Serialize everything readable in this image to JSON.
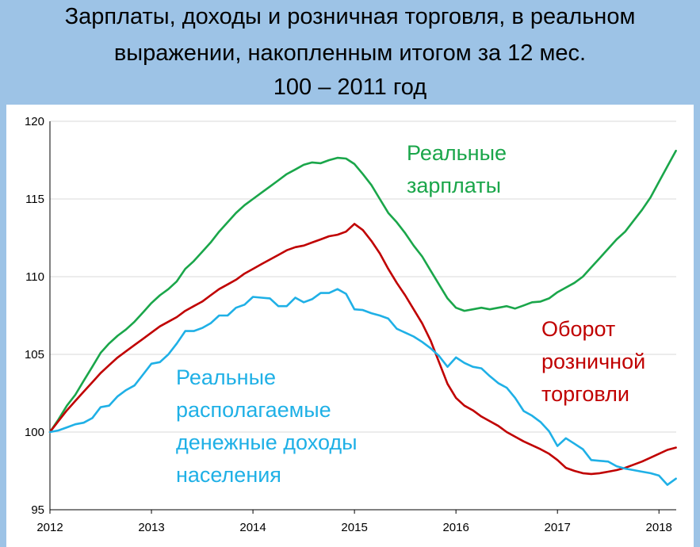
{
  "header": {
    "title_line1": "Зарплаты, доходы и розничная торговля, в реальном",
    "title_line2": "выражении, накопленным итогом за 12 мес.",
    "title_line3": "100 – 2011 год"
  },
  "colors": {
    "header_bg": "#9dc3e6",
    "wages": "#1aa64a",
    "retail": "#c00000",
    "income": "#1fb0e6",
    "grid": "#d9d9d9"
  },
  "annotations": {
    "wages_line1": "Реальные",
    "wages_line2": "зарплаты",
    "retail_line1": "Оборот",
    "retail_line2": "розничной",
    "retail_line3": "торговли",
    "income_line1": "Реальные",
    "income_line2": "располагаемые",
    "income_line3": "денежные доходы",
    "income_line4": "населения"
  },
  "chart_data": {
    "type": "line",
    "title": "Зарплаты, доходы и розничная торговля, в реальном выражении, накопленным итогом за 12 мес. 100 – 2011 год",
    "xlabel": "",
    "ylabel": "",
    "xlim": [
      2012,
      2018.17
    ],
    "ylim": [
      95,
      120
    ],
    "x_ticks": [
      "2012",
      "2013",
      "2014",
      "2015",
      "2016",
      "2017",
      "2018"
    ],
    "y_ticks": [
      "95",
      "100",
      "105",
      "110",
      "115",
      "120"
    ],
    "grid": "horizontal",
    "legend": "none (series labelled by coloured annotations)",
    "series": [
      {
        "name": "Реальные зарплаты",
        "color": "#1aa64a",
        "x": [
          2012.0,
          2012.083,
          2012.167,
          2012.25,
          2012.333,
          2012.417,
          2012.5,
          2012.583,
          2012.667,
          2012.75,
          2012.833,
          2012.917,
          2013.0,
          2013.083,
          2013.167,
          2013.25,
          2013.333,
          2013.417,
          2013.5,
          2013.583,
          2013.667,
          2013.75,
          2013.833,
          2013.917,
          2014.0,
          2014.083,
          2014.167,
          2014.25,
          2014.333,
          2014.417,
          2014.5,
          2014.583,
          2014.667,
          2014.75,
          2014.833,
          2014.917,
          2015.0,
          2015.083,
          2015.167,
          2015.25,
          2015.333,
          2015.417,
          2015.5,
          2015.583,
          2015.667,
          2015.75,
          2015.833,
          2015.917,
          2016.0,
          2016.083,
          2016.167,
          2016.25,
          2016.333,
          2016.417,
          2016.5,
          2016.583,
          2016.667,
          2016.75,
          2016.833,
          2016.917,
          2017.0,
          2017.083,
          2017.167,
          2017.25,
          2017.333,
          2017.417,
          2017.5,
          2017.583,
          2017.667,
          2017.75,
          2017.833,
          2017.917,
          2018.0,
          2018.083,
          2018.167
        ],
        "values": [
          100.0,
          100.8,
          101.7,
          102.4,
          103.3,
          104.2,
          105.1,
          105.7,
          106.2,
          106.6,
          107.1,
          107.7,
          108.3,
          108.8,
          109.2,
          109.7,
          110.5,
          111.0,
          111.6,
          112.2,
          112.9,
          113.5,
          114.1,
          114.6,
          115.0,
          115.4,
          115.8,
          116.2,
          116.6,
          116.9,
          117.2,
          117.35,
          117.3,
          117.5,
          117.65,
          117.6,
          117.25,
          116.6,
          115.9,
          115.0,
          114.1,
          113.5,
          112.8,
          112.0,
          111.3,
          110.4,
          109.5,
          108.6,
          108.0,
          107.8,
          107.9,
          108.0,
          107.9,
          108.0,
          108.1,
          107.95,
          108.15,
          108.35,
          108.4,
          108.6,
          109.0,
          109.3,
          109.6,
          110.0,
          110.6,
          111.2,
          111.8,
          112.4,
          112.9,
          113.6,
          114.3,
          115.1,
          116.1,
          117.1,
          118.1
        ]
      },
      {
        "name": "Оборот розничной торговли",
        "color": "#c00000",
        "x": [
          2012.0,
          2012.083,
          2012.167,
          2012.25,
          2012.333,
          2012.417,
          2012.5,
          2012.583,
          2012.667,
          2012.75,
          2012.833,
          2012.917,
          2013.0,
          2013.083,
          2013.167,
          2013.25,
          2013.333,
          2013.417,
          2013.5,
          2013.583,
          2013.667,
          2013.75,
          2013.833,
          2013.917,
          2014.0,
          2014.083,
          2014.167,
          2014.25,
          2014.333,
          2014.417,
          2014.5,
          2014.583,
          2014.667,
          2014.75,
          2014.833,
          2014.917,
          2015.0,
          2015.083,
          2015.167,
          2015.25,
          2015.333,
          2015.417,
          2015.5,
          2015.583,
          2015.667,
          2015.75,
          2015.833,
          2015.917,
          2016.0,
          2016.083,
          2016.167,
          2016.25,
          2016.333,
          2016.417,
          2016.5,
          2016.583,
          2016.667,
          2016.75,
          2016.833,
          2016.917,
          2017.0,
          2017.083,
          2017.167,
          2017.25,
          2017.333,
          2017.417,
          2017.5,
          2017.583,
          2017.667,
          2017.75,
          2017.833,
          2017.917,
          2018.0,
          2018.083,
          2018.167
        ],
        "values": [
          100.0,
          100.7,
          101.4,
          102.0,
          102.6,
          103.2,
          103.8,
          104.3,
          104.8,
          105.2,
          105.6,
          106.0,
          106.4,
          106.8,
          107.1,
          107.4,
          107.8,
          108.1,
          108.4,
          108.8,
          109.2,
          109.5,
          109.8,
          110.2,
          110.5,
          110.8,
          111.1,
          111.4,
          111.7,
          111.9,
          112.0,
          112.2,
          112.4,
          112.6,
          112.7,
          112.9,
          113.4,
          113.0,
          112.3,
          111.5,
          110.5,
          109.6,
          108.8,
          107.9,
          107.0,
          105.9,
          104.5,
          103.1,
          102.2,
          101.7,
          101.4,
          101.0,
          100.7,
          100.4,
          100.0,
          99.7,
          99.4,
          99.15,
          98.9,
          98.6,
          98.2,
          97.7,
          97.5,
          97.35,
          97.3,
          97.35,
          97.45,
          97.55,
          97.7,
          97.9,
          98.1,
          98.35,
          98.6,
          98.85,
          99.0
        ]
      },
      {
        "name": "Реальные располагаемые денежные доходы населения",
        "color": "#1fb0e6",
        "x": [
          2012.0,
          2012.083,
          2012.167,
          2012.25,
          2012.333,
          2012.417,
          2012.5,
          2012.583,
          2012.667,
          2012.75,
          2012.833,
          2012.917,
          2013.0,
          2013.083,
          2013.167,
          2013.25,
          2013.333,
          2013.417,
          2013.5,
          2013.583,
          2013.667,
          2013.75,
          2013.833,
          2013.917,
          2014.0,
          2014.083,
          2014.167,
          2014.25,
          2014.333,
          2014.417,
          2014.5,
          2014.583,
          2014.667,
          2014.75,
          2014.833,
          2014.917,
          2015.0,
          2015.083,
          2015.167,
          2015.25,
          2015.333,
          2015.417,
          2015.5,
          2015.583,
          2015.667,
          2015.75,
          2015.833,
          2015.917,
          2016.0,
          2016.083,
          2016.167,
          2016.25,
          2016.333,
          2016.417,
          2016.5,
          2016.583,
          2016.667,
          2016.75,
          2016.833,
          2016.917,
          2017.0,
          2017.083,
          2017.167,
          2017.25,
          2017.333,
          2017.417,
          2017.5,
          2017.583,
          2017.667,
          2017.75,
          2017.833,
          2017.917,
          2018.0,
          2018.083,
          2018.167
        ],
        "values": [
          100.0,
          100.1,
          100.3,
          100.5,
          100.6,
          100.9,
          101.6,
          101.7,
          102.3,
          102.7,
          103.0,
          103.7,
          104.4,
          104.5,
          105.0,
          105.7,
          106.5,
          106.5,
          106.7,
          107.0,
          107.5,
          107.5,
          108.0,
          108.2,
          108.7,
          108.65,
          108.6,
          108.1,
          108.1,
          108.65,
          108.35,
          108.55,
          108.95,
          108.95,
          109.2,
          108.9,
          107.9,
          107.85,
          107.65,
          107.5,
          107.3,
          106.65,
          106.4,
          106.15,
          105.8,
          105.4,
          104.9,
          104.2,
          104.8,
          104.45,
          104.2,
          104.1,
          103.6,
          103.15,
          102.85,
          102.2,
          101.35,
          101.05,
          100.65,
          100.05,
          99.1,
          99.6,
          99.25,
          98.9,
          98.2,
          98.15,
          98.1,
          97.8,
          97.65,
          97.55,
          97.45,
          97.35,
          97.2,
          96.6,
          97.0
        ]
      }
    ]
  }
}
